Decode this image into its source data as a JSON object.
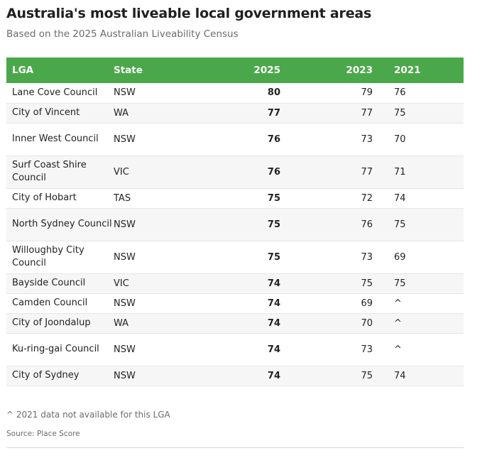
{
  "title": "Australia's most liveable local government areas",
  "subtitle": "Based on the 2025 Australian Liveability Census",
  "colors": {
    "header_bg": "#4aa84a",
    "header_text": "#ffffff",
    "row_alt": "#f6f6f6"
  },
  "chart_data": {
    "type": "table",
    "columns": [
      "LGA",
      "State",
      "2025",
      "2023",
      "2021"
    ],
    "rows": [
      {
        "lga": "Lane Cove Council",
        "state": "NSW",
        "y2025": "80",
        "y2023": "79",
        "y2021": "76"
      },
      {
        "lga": "City of Vincent",
        "state": "WA",
        "y2025": "77",
        "y2023": "77",
        "y2021": "75"
      },
      {
        "lga": "Inner West Council",
        "state": "NSW",
        "y2025": "76",
        "y2023": "73",
        "y2021": "70"
      },
      {
        "lga": "Surf Coast Shire Council",
        "state": "VIC",
        "y2025": "76",
        "y2023": "77",
        "y2021": "71"
      },
      {
        "lga": "City of Hobart",
        "state": "TAS",
        "y2025": "75",
        "y2023": "72",
        "y2021": "74"
      },
      {
        "lga": "North Sydney Council",
        "state": "NSW",
        "y2025": "75",
        "y2023": "76",
        "y2021": "75"
      },
      {
        "lga": "Willoughby City Council",
        "state": "NSW",
        "y2025": "75",
        "y2023": "73",
        "y2021": "69"
      },
      {
        "lga": "Bayside Council",
        "state": "VIC",
        "y2025": "74",
        "y2023": "75",
        "y2021": "75"
      },
      {
        "lga": "Camden Council",
        "state": "NSW",
        "y2025": "74",
        "y2023": "69",
        "y2021": "^"
      },
      {
        "lga": "City of Joondalup",
        "state": "WA",
        "y2025": "74",
        "y2023": "70",
        "y2021": "^"
      },
      {
        "lga": "Ku-ring-gai Council",
        "state": "NSW",
        "y2025": "74",
        "y2023": "73",
        "y2021": "^"
      },
      {
        "lga": "City of Sydney",
        "state": "NSW",
        "y2025": "74",
        "y2023": "75",
        "y2021": "74"
      }
    ]
  },
  "footnote": "^ 2021 data not available for this LGA",
  "source": "Source: Place Score"
}
